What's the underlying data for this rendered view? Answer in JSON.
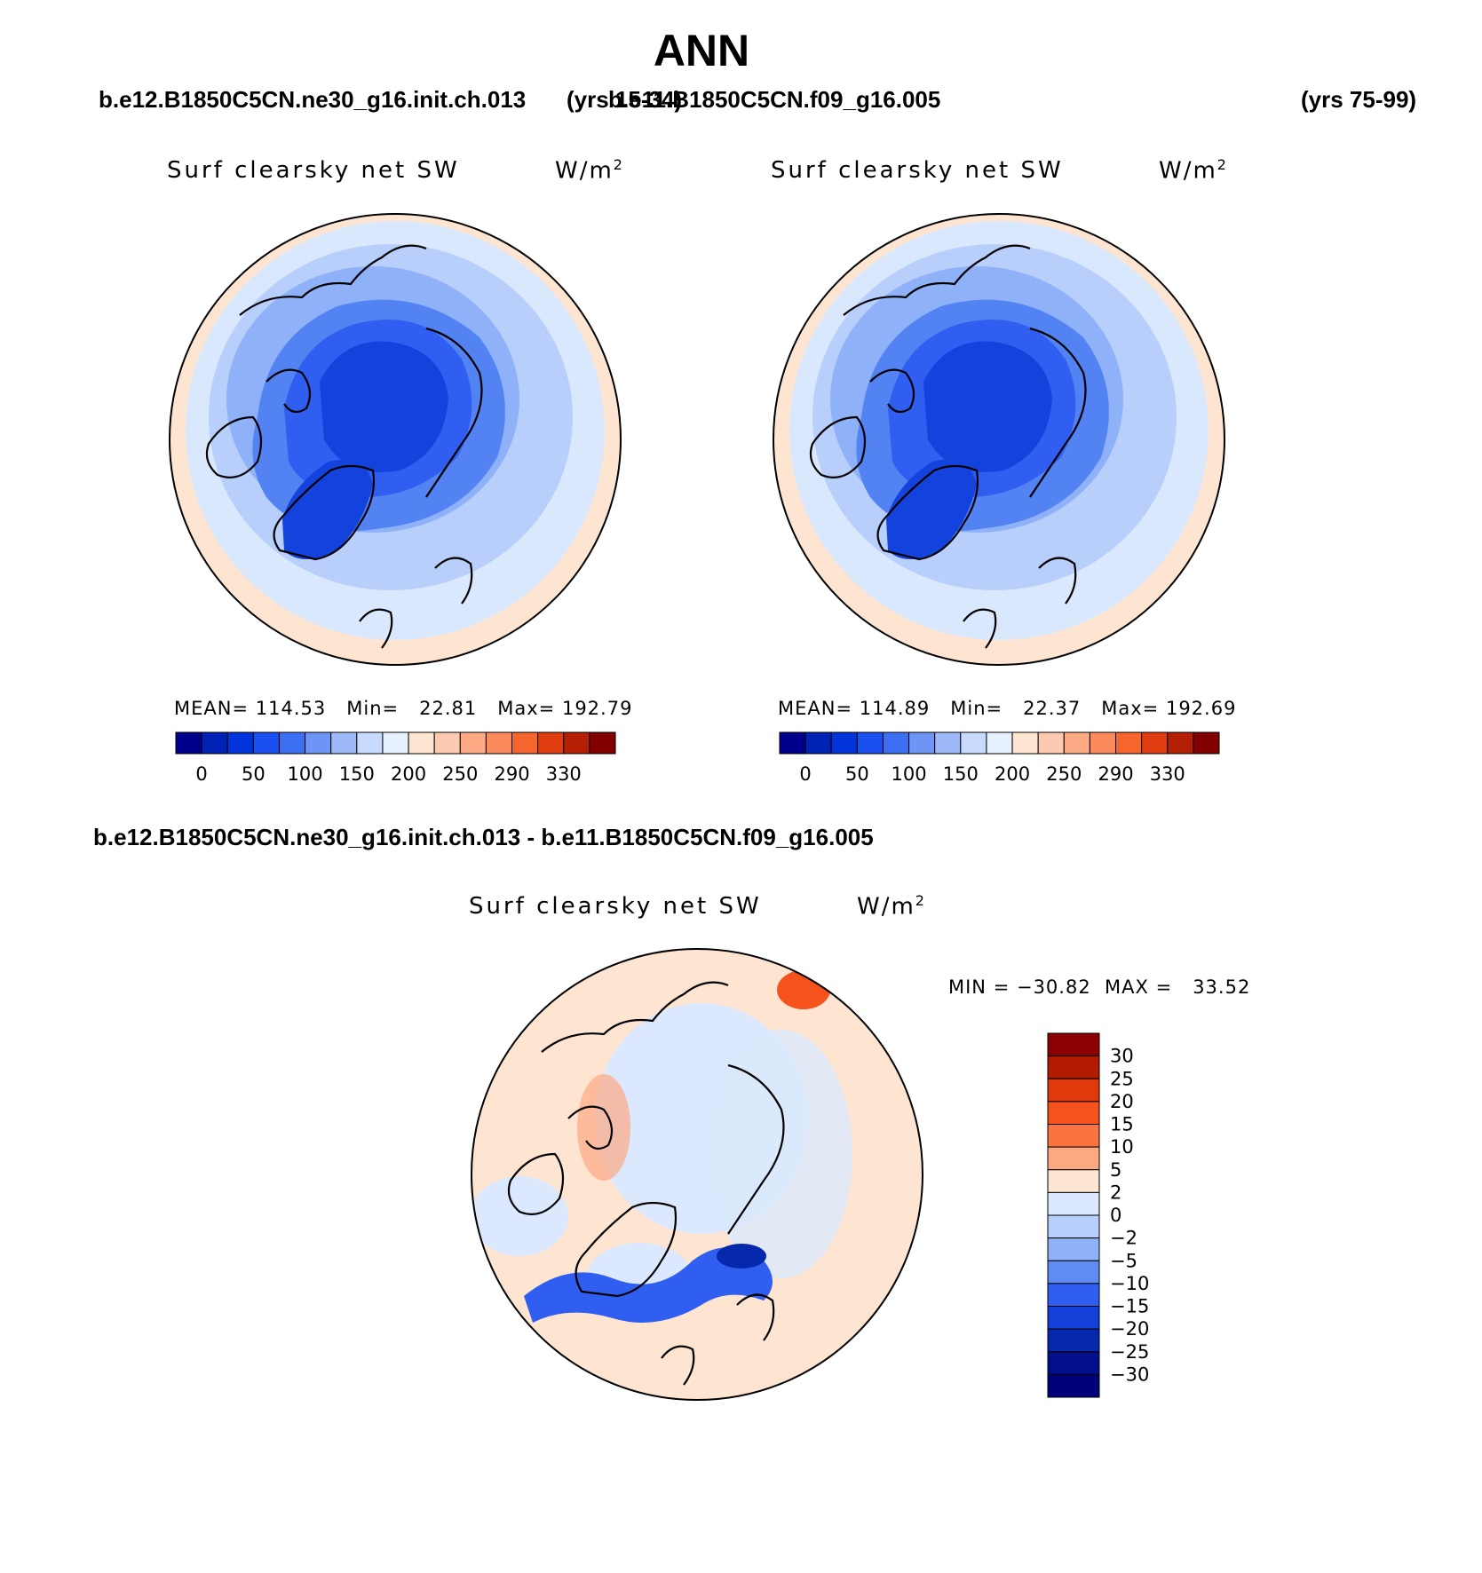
{
  "page": {
    "title": "ANN"
  },
  "header": {
    "case1": "b.e12.B1850C5CN.ne30_g16.init.ch.013",
    "case1_years": "(yrs 15-34)",
    "case2": "b.e11.B1850C5CN.f09_g16.005",
    "case2_years": "(yrs 75-99)",
    "diff_label": "b.e12.B1850C5CN.ne30_g16.init.ch.013 - b.e11.B1850C5CN.f09_g16.005"
  },
  "panels": [
    {
      "variable": "Surf clearsky net SW",
      "unit": "W/m",
      "unit_sup": "2",
      "stats": "MEAN= 114.53   Min=   22.81   Max= 192.79"
    },
    {
      "variable": "Surf clearsky net SW",
      "unit": "W/m",
      "unit_sup": "2",
      "stats": "MEAN= 114.89   Min=   22.37   Max= 192.69"
    },
    {
      "variable": "Surf clearsky net SW",
      "unit": "W/m",
      "unit_sup": "2",
      "stats": "MIN = −30.82  MAX =   33.52"
    }
  ],
  "chart_data": [
    {
      "type": "heatmap",
      "projection": "north polar stereographic",
      "title": "Surf clearsky net SW",
      "units": "W/m2",
      "mean": 114.53,
      "min": 22.81,
      "max": 192.79,
      "colorbar": {
        "tick_labels": [
          "0",
          "50",
          "100",
          "150",
          "200",
          "250",
          "290",
          "330"
        ],
        "colors": [
          "#00008c",
          "#0022b4",
          "#0033d9",
          "#1a4ff0",
          "#3d6ff2",
          "#6e95f5",
          "#9db9fa",
          "#c8dafd",
          "#e6f0fe",
          "#fde5d2",
          "#fccab0",
          "#fca983",
          "#fb8b5c",
          "#f5652d",
          "#e03e10",
          "#b51f05",
          "#820000"
        ]
      }
    },
    {
      "type": "heatmap",
      "projection": "north polar stereographic",
      "title": "Surf clearsky net SW",
      "units": "W/m2",
      "mean": 114.89,
      "min": 22.37,
      "max": 192.69,
      "colorbar": {
        "tick_labels": [
          "0",
          "50",
          "100",
          "150",
          "200",
          "250",
          "290",
          "330"
        ],
        "colors": [
          "#00008c",
          "#0022b4",
          "#0033d9",
          "#1a4ff0",
          "#3d6ff2",
          "#6e95f5",
          "#9db9fa",
          "#c8dafd",
          "#e6f0fe",
          "#fde5d2",
          "#fccab0",
          "#fca983",
          "#fb8b5c",
          "#f5652d",
          "#e03e10",
          "#b51f05",
          "#820000"
        ]
      }
    },
    {
      "type": "heatmap",
      "projection": "north polar stereographic",
      "title": "Surf clearsky net SW",
      "units": "W/m2",
      "min": -30.82,
      "max": 33.52,
      "colorbar": {
        "tick_labels": [
          "30",
          "25",
          "20",
          "15",
          "10",
          "5",
          "2",
          "0",
          "−2",
          "−5",
          "−10",
          "−15",
          "−20",
          "−25",
          "−30"
        ],
        "colors": [
          "#8b0000",
          "#b31b00",
          "#e03a0c",
          "#f5521e",
          "#fb7440",
          "#fca983",
          "#fde5d2",
          "#dbe8fd",
          "#b9cffb",
          "#8eb1f8",
          "#5f8cf3",
          "#2f5ef0",
          "#1440d9",
          "#0628ac",
          "#01108a"
        ]
      }
    }
  ]
}
